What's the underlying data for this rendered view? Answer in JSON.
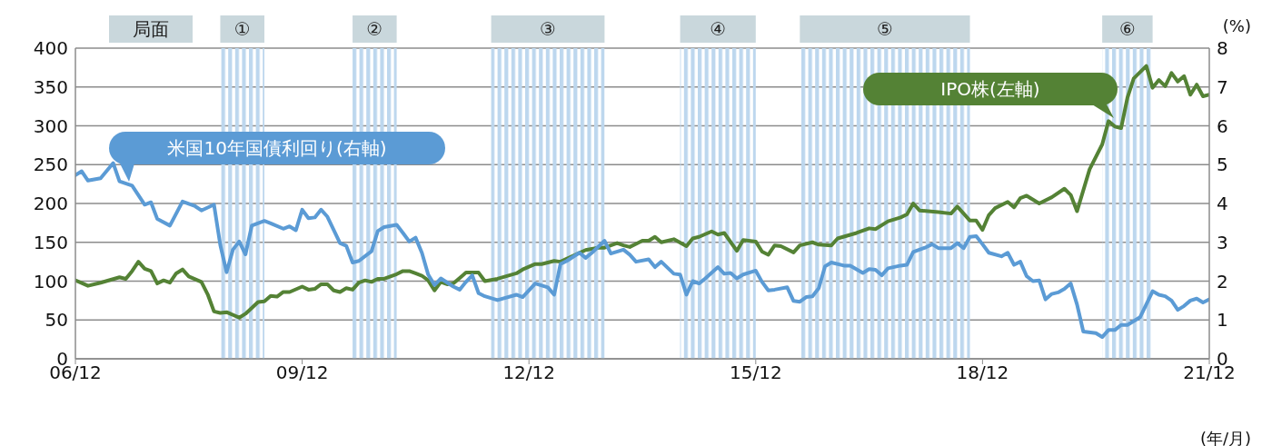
{
  "chart_data": {
    "type": "line",
    "xlabel": "(年/月)",
    "y2label": "(%)",
    "annotations": [
      "局面"
    ],
    "xlim": [
      "2006-12",
      "2021-12"
    ],
    "xticks": [
      {
        "value": "2006-12",
        "label": "06/12"
      },
      {
        "value": "2009-12",
        "label": "09/12"
      },
      {
        "value": "2012-12",
        "label": "12/12"
      },
      {
        "value": "2015-12",
        "label": "15/12"
      },
      {
        "value": "2018-12",
        "label": "18/12"
      },
      {
        "value": "2021-12",
        "label": "21/12"
      }
    ],
    "ylim": [
      0,
      400
    ],
    "yticks": [
      0,
      50,
      100,
      150,
      200,
      250,
      300,
      350,
      400
    ],
    "y2lim": [
      0,
      8
    ],
    "y2ticks": [
      0,
      1,
      2,
      3,
      4,
      5,
      6,
      7,
      8
    ],
    "grid": "y",
    "legend": false,
    "marker": "none",
    "line_style": "solid",
    "bands": [
      {
        "axis": "x",
        "from": "2008-11",
        "to": "2009-06",
        "label": "①",
        "color": "#bdd7ee"
      },
      {
        "axis": "x",
        "from": "2010-08",
        "to": "2011-03",
        "label": "②",
        "color": "#bdd7ee"
      },
      {
        "axis": "x",
        "from": "2012-06",
        "to": "2013-12",
        "label": "③",
        "color": "#bdd7ee"
      },
      {
        "axis": "x",
        "from": "2014-12",
        "to": "2015-12",
        "label": "④",
        "color": "#bdd7ee"
      },
      {
        "axis": "x",
        "from": "2016-07",
        "to": "2018-10",
        "label": "⑤",
        "color": "#bdd7ee"
      },
      {
        "axis": "x",
        "from": "2020-07",
        "to": "2021-03",
        "label": "⑥",
        "color": "#bdd7ee"
      }
    ],
    "series": [
      {
        "name": "IPO株(左軸)",
        "color": "#548235",
        "x": [
          "2006-12",
          "2007-02",
          "2007-04",
          "2007-07",
          "2007-08",
          "2007-09",
          "2007-10",
          "2007-11",
          "2007-12",
          "2008-01",
          "2008-02",
          "2008-03",
          "2008-04",
          "2008-05",
          "2008-06",
          "2008-08",
          "2008-09",
          "2008-10",
          "2008-11",
          "2008-12",
          "2009-02",
          "2009-03",
          "2009-05",
          "2009-06",
          "2009-07",
          "2009-08",
          "2009-09",
          "2009-10",
          "2009-12",
          "2010-01",
          "2010-02",
          "2010-03",
          "2010-04",
          "2010-05",
          "2010-06",
          "2010-07",
          "2010-08",
          "2010-09",
          "2010-10",
          "2010-11",
          "2010-12",
          "2011-01",
          "2011-03",
          "2011-04",
          "2011-05",
          "2011-06",
          "2011-07",
          "2011-08",
          "2011-09",
          "2011-10",
          "2011-11",
          "2011-12",
          "2012-02",
          "2012-04",
          "2012-05",
          "2012-07",
          "2012-10",
          "2012-11",
          "2013-01",
          "2013-02",
          "2013-04",
          "2013-05",
          "2013-06",
          "2013-09",
          "2013-11",
          "2013-12",
          "2014-02",
          "2014-03",
          "2014-04",
          "2014-05",
          "2014-06",
          "2014-07",
          "2014-08",
          "2014-09",
          "2014-11",
          "2015-01",
          "2015-02",
          "2015-03",
          "2015-05",
          "2015-06",
          "2015-07",
          "2015-09",
          "2015-10",
          "2015-12",
          "2016-01",
          "2016-02",
          "2016-03",
          "2016-04",
          "2016-06",
          "2016-07",
          "2016-09",
          "2016-10",
          "2016-12",
          "2017-01",
          "2017-04",
          "2017-06",
          "2017-07",
          "2017-09",
          "2017-11",
          "2017-12",
          "2018-01",
          "2018-02",
          "2018-05",
          "2018-07",
          "2018-08",
          "2018-10",
          "2018-11",
          "2018-12",
          "2019-01",
          "2019-02",
          "2019-04",
          "2019-05",
          "2019-06",
          "2019-07",
          "2019-09",
          "2019-11",
          "2020-01",
          "2020-02",
          "2020-03",
          "2020-05",
          "2020-07",
          "2020-08",
          "2020-09",
          "2020-10",
          "2020-11",
          "2020-12",
          "2021-02",
          "2021-03",
          "2021-04",
          "2021-05",
          "2021-06",
          "2021-07",
          "2021-08",
          "2021-09",
          "2021-10",
          "2021-11",
          "2021-12"
        ],
        "values": [
          101,
          94,
          98,
          105,
          103,
          113,
          125,
          116,
          113,
          97,
          101,
          98,
          110,
          115,
          106,
          99,
          83,
          61,
          59,
          60,
          53,
          58,
          73,
          74,
          81,
          80,
          86,
          86,
          93,
          89,
          90,
          96,
          96,
          88,
          86,
          91,
          89,
          98,
          101,
          99,
          103,
          103,
          109,
          113,
          113,
          110,
          107,
          101,
          88,
          99,
          96,
          97,
          111,
          111,
          100,
          103,
          110,
          115,
          122,
          122,
          126,
          125,
          129,
          140,
          143,
          143,
          149,
          146,
          144,
          148,
          152,
          152,
          157,
          150,
          154,
          145,
          155,
          157,
          164,
          160,
          162,
          139,
          153,
          151,
          138,
          134,
          146,
          145,
          137,
          146,
          150,
          147,
          146,
          155,
          162,
          168,
          167,
          177,
          182,
          186,
          200,
          191,
          189,
          187,
          196,
          178,
          178,
          166,
          185,
          194,
          202,
          195,
          207,
          210,
          200,
          208,
          219,
          211,
          190,
          244,
          276,
          306,
          299,
          297,
          336,
          361,
          377,
          349,
          359,
          351,
          368,
          357,
          364,
          340,
          353,
          338,
          340
        ]
      },
      {
        "name": "米国10年国債利回り(右軸)",
        "color": "#5b9bd5",
        "axis": "y2",
        "x": [
          "2006-12",
          "2007-01",
          "2007-02",
          "2007-04",
          "2007-06",
          "2007-07",
          "2007-09",
          "2007-11",
          "2007-12",
          "2008-01",
          "2008-03",
          "2008-05",
          "2008-07",
          "2008-08",
          "2008-10",
          "2008-11",
          "2008-12",
          "2009-01",
          "2009-02",
          "2009-03",
          "2009-04",
          "2009-06",
          "2009-07",
          "2009-09",
          "2009-10",
          "2009-11",
          "2009-12",
          "2010-01",
          "2010-02",
          "2010-03",
          "2010-04",
          "2010-06",
          "2010-07",
          "2010-08",
          "2010-09",
          "2010-11",
          "2010-12",
          "2011-01",
          "2011-03",
          "2011-04",
          "2011-05",
          "2011-06",
          "2011-07",
          "2011-08",
          "2011-09",
          "2011-10",
          "2011-12",
          "2012-01",
          "2012-02",
          "2012-03",
          "2012-04",
          "2012-05",
          "2012-07",
          "2012-10",
          "2012-11",
          "2013-01",
          "2013-03",
          "2013-04",
          "2013-05",
          "2013-06",
          "2013-08",
          "2013-09",
          "2013-10",
          "2013-12",
          "2014-01",
          "2014-03",
          "2014-04",
          "2014-05",
          "2014-07",
          "2014-08",
          "2014-09",
          "2014-11",
          "2014-12",
          "2015-01",
          "2015-02",
          "2015-03",
          "2015-04",
          "2015-06",
          "2015-07",
          "2015-08",
          "2015-09",
          "2015-10",
          "2015-12",
          "2016-01",
          "2016-02",
          "2016-03",
          "2016-05",
          "2016-06",
          "2016-07",
          "2016-08",
          "2016-09",
          "2016-10",
          "2016-11",
          "2016-12",
          "2017-02",
          "2017-03",
          "2017-05",
          "2017-06",
          "2017-07",
          "2017-08",
          "2017-09",
          "2017-11",
          "2017-12",
          "2018-01",
          "2018-03",
          "2018-04",
          "2018-05",
          "2018-07",
          "2018-08",
          "2018-09",
          "2018-10",
          "2018-11",
          "2018-12",
          "2019-01",
          "2019-03",
          "2019-04",
          "2019-05",
          "2019-06",
          "2019-07",
          "2019-08",
          "2019-09",
          "2019-10",
          "2019-11",
          "2019-12",
          "2020-01",
          "2020-02",
          "2020-03",
          "2020-04",
          "2020-06",
          "2020-07",
          "2020-08",
          "2020-09",
          "2020-10",
          "2020-11",
          "2020-12",
          "2021-01",
          "2021-02",
          "2021-03",
          "2021-04",
          "2021-05",
          "2021-06",
          "2021-07",
          "2021-08",
          "2021-09",
          "2021-10",
          "2021-11",
          "2021-12"
        ],
        "values": [
          4.73,
          4.83,
          4.59,
          4.65,
          5.04,
          4.57,
          4.46,
          3.97,
          4.03,
          3.6,
          3.43,
          4.05,
          3.93,
          3.82,
          3.97,
          2.93,
          2.23,
          2.81,
          3.02,
          2.69,
          3.43,
          3.55,
          3.49,
          3.35,
          3.41,
          3.31,
          3.84,
          3.62,
          3.64,
          3.84,
          3.66,
          2.98,
          2.91,
          2.48,
          2.52,
          2.77,
          3.29,
          3.39,
          3.45,
          3.24,
          3.02,
          3.12,
          2.73,
          2.17,
          1.9,
          2.07,
          1.86,
          1.78,
          1.98,
          2.15,
          1.69,
          1.61,
          1.51,
          1.65,
          1.59,
          1.94,
          1.84,
          1.65,
          2.44,
          2.52,
          2.73,
          2.6,
          2.73,
          3.04,
          2.71,
          2.81,
          2.68,
          2.5,
          2.56,
          2.36,
          2.5,
          2.19,
          2.17,
          1.65,
          2.0,
          1.94,
          2.07,
          2.36,
          2.19,
          2.21,
          2.07,
          2.17,
          2.27,
          1.98,
          1.76,
          1.78,
          1.84,
          1.49,
          1.47,
          1.59,
          1.61,
          1.82,
          2.38,
          2.48,
          2.4,
          2.4,
          2.21,
          2.31,
          2.29,
          2.15,
          2.33,
          2.4,
          2.42,
          2.75,
          2.87,
          2.95,
          2.85,
          2.85,
          2.98,
          2.85,
          3.14,
          3.16,
          2.95,
          2.73,
          2.64,
          2.73,
          2.42,
          2.5,
          2.13,
          2.0,
          2.02,
          1.53,
          1.67,
          1.71,
          1.8,
          1.94,
          1.4,
          0.7,
          0.66,
          0.56,
          0.74,
          0.74,
          0.87,
          0.87,
          0.97,
          1.07,
          1.4,
          1.74,
          1.65,
          1.61,
          1.5,
          1.26,
          1.36,
          1.5,
          1.55,
          1.45,
          1.53
        ]
      }
    ]
  }
}
